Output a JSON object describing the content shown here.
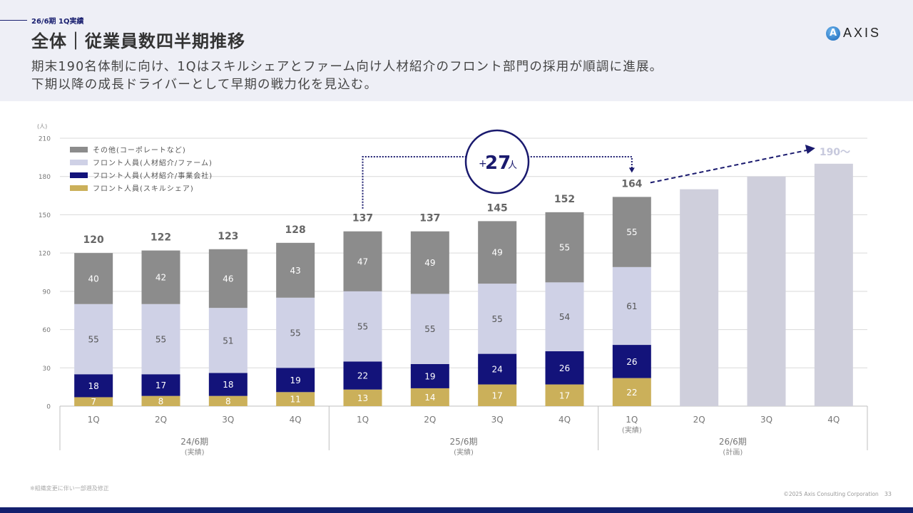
{
  "header": {
    "section_tag": "26/6期 1Q実績",
    "title": "全体｜従業員数四半期推移",
    "subtitle_line1": "期末190名体制に向け、1Qはスキルシェアとファーム向け人材紹介のフロント部門の採用が順調に進展。",
    "subtitle_line2": "下期以降の成長ドライバーとして早期の戦力化を見込む。",
    "logo_text": "AXIS",
    "logo_mark": "A"
  },
  "colors": {
    "other": "#8c8c8c",
    "firm": "#cfd1e6",
    "business": "#13137a",
    "skillshare": "#cbb05a",
    "plan": "#cfcfdc",
    "accent": "#1a1a6e"
  },
  "chart_data": {
    "type": "bar",
    "stacked": true,
    "unit_label": "(人)",
    "ylim": [
      0,
      210
    ],
    "yticks": [
      0,
      30,
      60,
      90,
      120,
      150,
      180,
      210
    ],
    "grid": true,
    "legend_position": "top-left",
    "categories": [
      "1Q",
      "2Q",
      "3Q",
      "4Q",
      "1Q",
      "2Q",
      "3Q",
      "4Q",
      "1Q",
      "2Q",
      "3Q",
      "4Q"
    ],
    "category_sublabels": [
      "",
      "",
      "",
      "",
      "",
      "",
      "",
      "",
      "(実績)",
      "",
      "",
      ""
    ],
    "groups": [
      {
        "label": "24/6期",
        "sublabel": "(実績)",
        "span": 4
      },
      {
        "label": "25/6期",
        "sublabel": "(実績)",
        "span": 4
      },
      {
        "label": "26/6期",
        "sublabel": "(計画)",
        "span": 4
      }
    ],
    "series": [
      {
        "key": "skillshare",
        "name": "フロント人員(スキルシェア)",
        "values": [
          7,
          8,
          8,
          11,
          13,
          14,
          17,
          17,
          22,
          null,
          null,
          null
        ]
      },
      {
        "key": "business",
        "name": "フロント人員(人材紹介/事業会社)",
        "values": [
          18,
          17,
          18,
          19,
          22,
          19,
          24,
          26,
          26,
          null,
          null,
          null
        ]
      },
      {
        "key": "firm",
        "name": "フロント人員(人材紹介/ファーム)",
        "values": [
          55,
          55,
          51,
          55,
          55,
          55,
          55,
          54,
          61,
          null,
          null,
          null
        ]
      },
      {
        "key": "other",
        "name": "その他(コーポレートなど)",
        "values": [
          40,
          42,
          46,
          43,
          47,
          49,
          49,
          55,
          55,
          null,
          null,
          null
        ]
      }
    ],
    "legend_order": [
      "other",
      "firm",
      "business",
      "skillshare"
    ],
    "totals": [
      120,
      122,
      123,
      128,
      137,
      137,
      145,
      152,
      164,
      null,
      null,
      null
    ],
    "plan_values": [
      null,
      null,
      null,
      null,
      null,
      null,
      null,
      null,
      null,
      170,
      180,
      190
    ],
    "annotations": {
      "increase_label_sign": "+",
      "increase_label_value": "27",
      "increase_label_unit": "人",
      "increase_from_index": 4,
      "increase_to_index": 8,
      "target_label": "190〜"
    }
  },
  "footer": {
    "note": "※組織変更に伴い一部遡及修正",
    "copyright": "©2025 Axis Consulting Corporation",
    "page_number": "33"
  }
}
